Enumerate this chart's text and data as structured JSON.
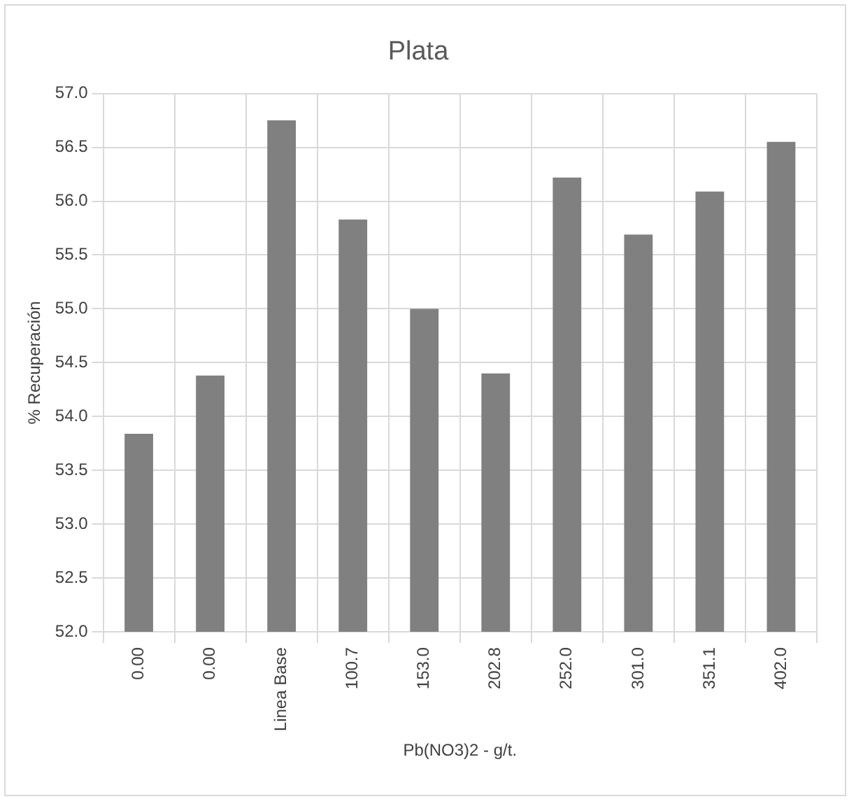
{
  "chart_data": {
    "type": "bar",
    "title": "Plata",
    "xlabel": "Pb(NO3)2 - g/t.",
    "ylabel": "% Recuperación",
    "categories": [
      "0.00",
      "0.00",
      "Linea Base",
      "100.7",
      "153.0",
      "202.8",
      "252.0",
      "301.0",
      "351.1",
      "402.0"
    ],
    "values": [
      53.84,
      54.38,
      56.75,
      55.83,
      55.0,
      54.4,
      56.22,
      55.69,
      56.09,
      56.55
    ],
    "color": "#808080",
    "ylim": [
      52,
      57
    ],
    "yticks": [
      {
        "value": 52,
        "label": "52.0"
      },
      {
        "value": 52.5,
        "label": "52.5"
      },
      {
        "value": 53,
        "label": "53.0"
      },
      {
        "value": 53.5,
        "label": "53.5"
      },
      {
        "value": 54,
        "label": "54.0"
      },
      {
        "value": 54.5,
        "label": "54.5"
      },
      {
        "value": 55,
        "label": "55.0"
      },
      {
        "value": 55.5,
        "label": "55.5"
      },
      {
        "value": 56,
        "label": "56.0"
      },
      {
        "value": 56.5,
        "label": "56.5"
      },
      {
        "value": 57,
        "label": "57.0"
      }
    ],
    "grid": true
  }
}
